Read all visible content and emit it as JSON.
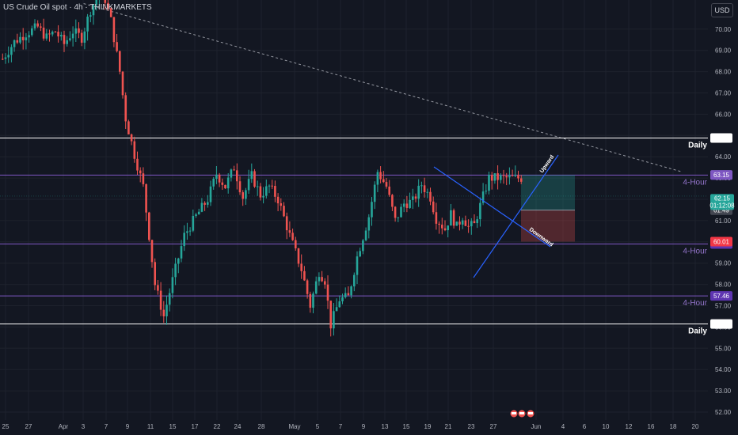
{
  "header": {
    "title": "US Crude Oil spot · 4h · THINKMARKETS",
    "currency": "USD"
  },
  "colors": {
    "background": "#131722",
    "up": "#26a69a",
    "down": "#ef5350",
    "grid": "#1e222d",
    "daily": "#ffffff",
    "four_hour": "#7e57c2",
    "trend": "#2962ff"
  },
  "chart_data": {
    "type": "candlestick",
    "timeframe": "4h",
    "ylim": [
      51.6,
      71.6
    ],
    "y_ticks": [
      52,
      53,
      54,
      55,
      56,
      57,
      58,
      59,
      60,
      61,
      62,
      63,
      64,
      65,
      66,
      67,
      68,
      69,
      70
    ],
    "x_ticks": [
      "25",
      "27",
      "Apr",
      "3",
      "7",
      "9",
      "11",
      "15",
      "17",
      "22",
      "24",
      "28",
      "May",
      "5",
      "7",
      "9",
      "13",
      "15",
      "19",
      "21",
      "23",
      "27",
      "Jun",
      "4",
      "6",
      "10",
      "12",
      "16",
      "18",
      "20"
    ],
    "price_path": [
      [
        0,
        68.6
      ],
      [
        4,
        69.4
      ],
      [
        8,
        69.8
      ],
      [
        12,
        70.1
      ],
      [
        15,
        69.6
      ],
      [
        18,
        69.9
      ],
      [
        21,
        69.3
      ],
      [
        24,
        69.9
      ],
      [
        27,
        69.6
      ],
      [
        30,
        70.9
      ],
      [
        33,
        71.7
      ],
      [
        35,
        71.4
      ],
      [
        37,
        70.4
      ],
      [
        40,
        68.0
      ],
      [
        42,
        65.8
      ],
      [
        45,
        64.1
      ],
      [
        48,
        62.6
      ],
      [
        52,
        58.0
      ],
      [
        55,
        56.5
      ],
      [
        58,
        58.2
      ],
      [
        62,
        60.3
      ],
      [
        66,
        61.2
      ],
      [
        70,
        62.0
      ],
      [
        73,
        63.2
      ],
      [
        76,
        62.6
      ],
      [
        79,
        63.5
      ],
      [
        82,
        62.1
      ],
      [
        85,
        63.1
      ],
      [
        88,
        62.2
      ],
      [
        91,
        62.6
      ],
      [
        94,
        62.0
      ],
      [
        98,
        60.3
      ],
      [
        102,
        58.7
      ],
      [
        105,
        57.0
      ],
      [
        108,
        58.6
      ],
      [
        110,
        58.2
      ],
      [
        112,
        56.1
      ],
      [
        115,
        57.3
      ],
      [
        118,
        57.4
      ],
      [
        121,
        59.3
      ],
      [
        125,
        61.2
      ],
      [
        128,
        63.3
      ],
      [
        131,
        62.6
      ],
      [
        134,
        61.0
      ],
      [
        137,
        61.8
      ],
      [
        140,
        61.9
      ],
      [
        143,
        62.7
      ],
      [
        146,
        62.1
      ],
      [
        148,
        61.1
      ],
      [
        151,
        60.6
      ],
      [
        153,
        61.3
      ],
      [
        155,
        60.7
      ],
      [
        157,
        61.2
      ],
      [
        159,
        60.7
      ],
      [
        161,
        60.8
      ],
      [
        163,
        61.7
      ],
      [
        166,
        63.0
      ]
    ],
    "labels": {
      "current_price": "62.15",
      "countdown": "01:12:08"
    },
    "levels": [
      {
        "price": 64.88,
        "label": "Daily",
        "value": "64.88",
        "kind": "daily"
      },
      {
        "price": 63.14,
        "label": "4-Hour",
        "value": "63.14",
        "kind": "four_hour"
      },
      {
        "price": 59.9,
        "label": "4-Hour",
        "value": "59.90",
        "kind": "four_hour"
      },
      {
        "price": 57.46,
        "label": "4-Hour",
        "value": "57.46",
        "kind": "four_hour"
      },
      {
        "price": 56.14,
        "label": "Daily",
        "value": "56.14",
        "kind": "daily"
      }
    ],
    "price_badges": [
      {
        "value": "63.15",
        "price": 63.15,
        "color": "#7e57c2"
      },
      {
        "value": "61.49",
        "price": 61.49,
        "color": "#434651"
      },
      {
        "value": "60.01",
        "price": 60.01,
        "color": "#f23645"
      }
    ],
    "trendlines": [
      {
        "label": "Upward",
        "from": [
          146,
          58.2
        ],
        "to": [
          171,
          64.0
        ]
      },
      {
        "label": "Downward",
        "from": [
          145,
          63.4
        ],
        "to": [
          171,
          59.9
        ]
      }
    ],
    "long_position": {
      "entry": 61.49,
      "target": 63.15,
      "stop": 60.01,
      "start": 169,
      "end": 191
    },
    "long_term_resistance": {
      "from": [
        28,
        71.2
      ],
      "to": [
        232,
        63.3
      ]
    }
  }
}
